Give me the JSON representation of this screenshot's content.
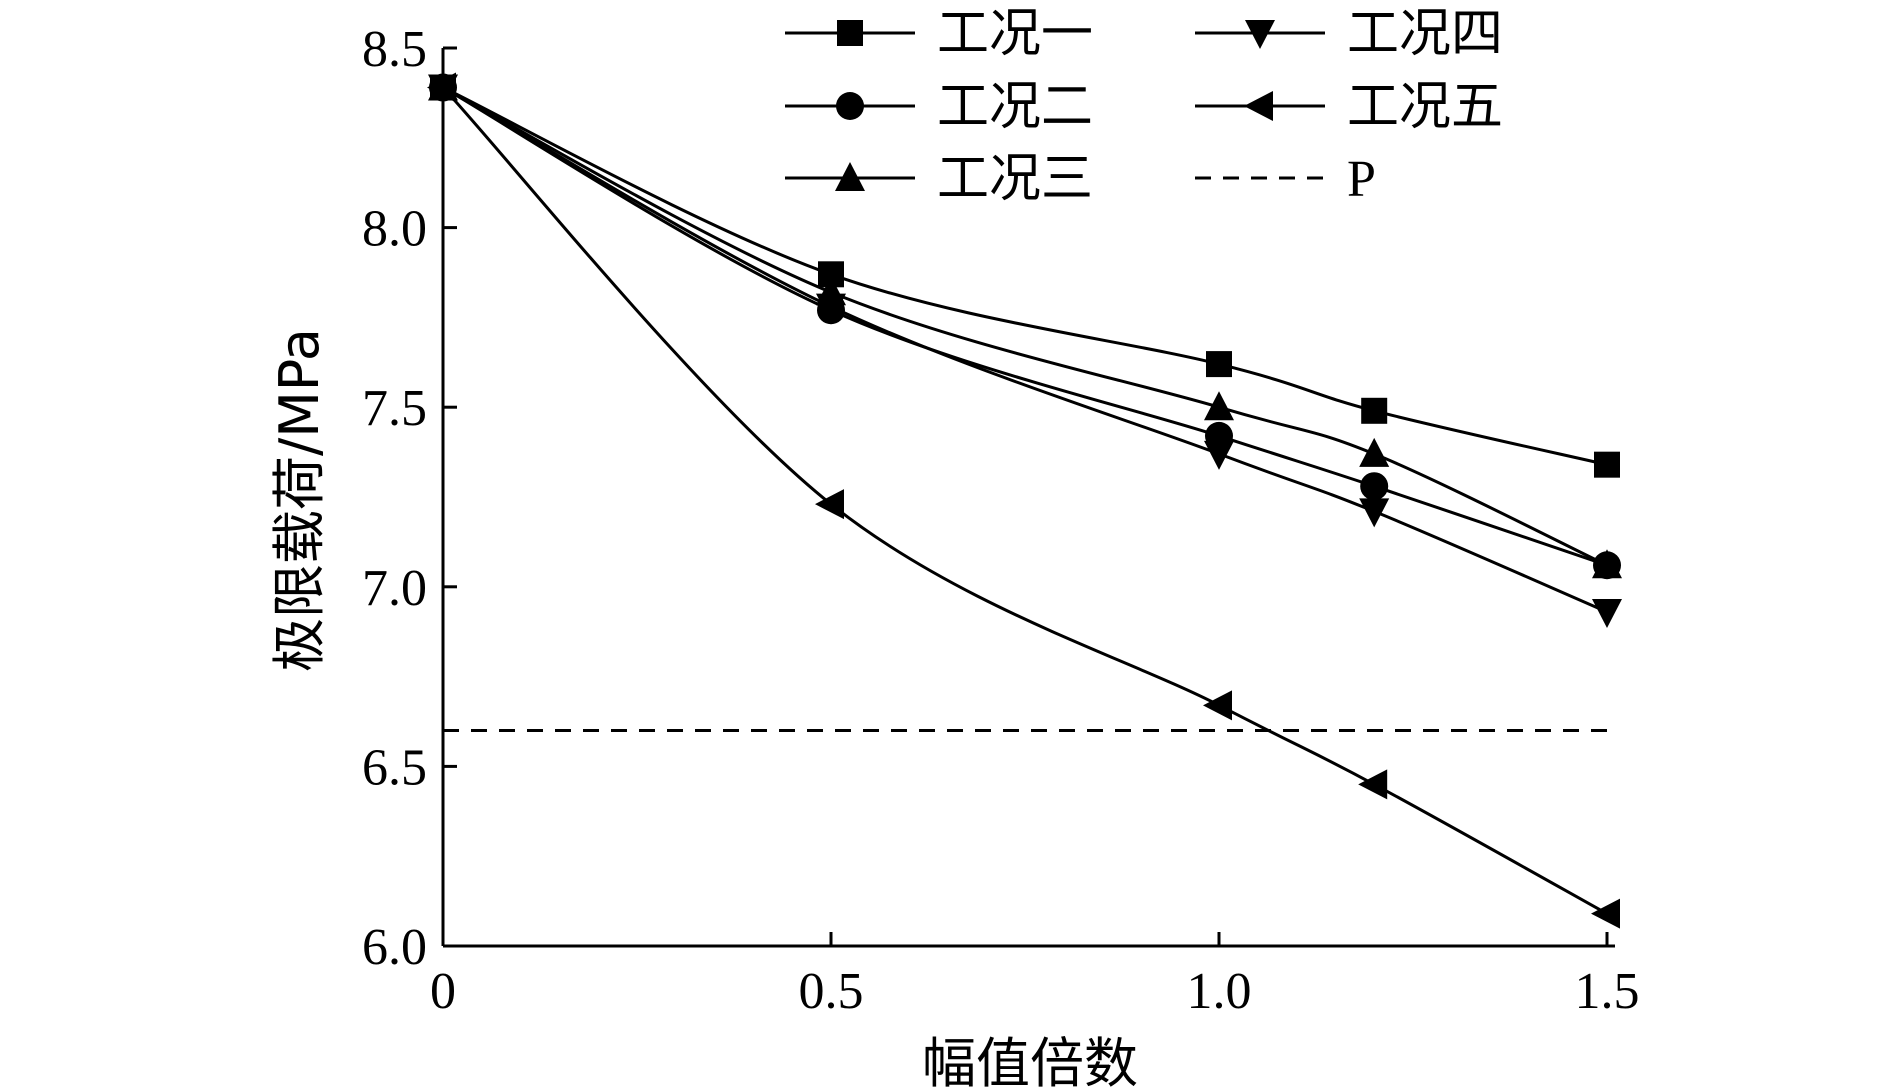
{
  "chart_data": {
    "type": "line",
    "xlabel": "幅值倍数",
    "ylabel": "极限载荷/MPa",
    "xlim": [
      0,
      1.5
    ],
    "ylim": [
      6.0,
      8.5
    ],
    "x_ticks": [
      0,
      0.5,
      1.0,
      1.5
    ],
    "x_tick_labels": [
      "0",
      "0.5",
      "1.0",
      "1.5"
    ],
    "y_ticks": [
      6.0,
      6.5,
      7.0,
      7.5,
      8.0,
      8.5
    ],
    "y_tick_labels": [
      "6.0",
      "6.5",
      "7.0",
      "7.5",
      "8.0",
      "8.5"
    ],
    "grid": false,
    "legend_position": "top-right",
    "series": [
      {
        "name": "工况一",
        "marker": "square",
        "x": [
          0,
          0.5,
          1.0,
          1.2,
          1.5
        ],
        "y": [
          8.39,
          7.87,
          7.62,
          7.49,
          7.34
        ]
      },
      {
        "name": "工况二",
        "marker": "circle",
        "x": [
          0,
          0.5,
          1.0,
          1.2,
          1.5
        ],
        "y": [
          8.39,
          7.77,
          7.42,
          7.28,
          7.06
        ]
      },
      {
        "name": "工况三",
        "marker": "triangle-up",
        "x": [
          0,
          0.5,
          1.0,
          1.2,
          1.5
        ],
        "y": [
          8.39,
          7.82,
          7.5,
          7.37,
          7.06
        ]
      },
      {
        "name": "工况四",
        "marker": "triangle-down",
        "x": [
          0,
          0.5,
          1.0,
          1.2,
          1.5
        ],
        "y": [
          8.39,
          7.78,
          7.37,
          7.21,
          6.93
        ]
      },
      {
        "name": "工况五",
        "marker": "triangle-left",
        "x": [
          0,
          0.5,
          1.0,
          1.2,
          1.5
        ],
        "y": [
          8.39,
          7.23,
          6.67,
          6.45,
          6.09
        ]
      },
      {
        "name": "P",
        "style": "dashed",
        "x": [
          0,
          1.5
        ],
        "y": [
          6.6,
          6.6
        ]
      }
    ]
  }
}
